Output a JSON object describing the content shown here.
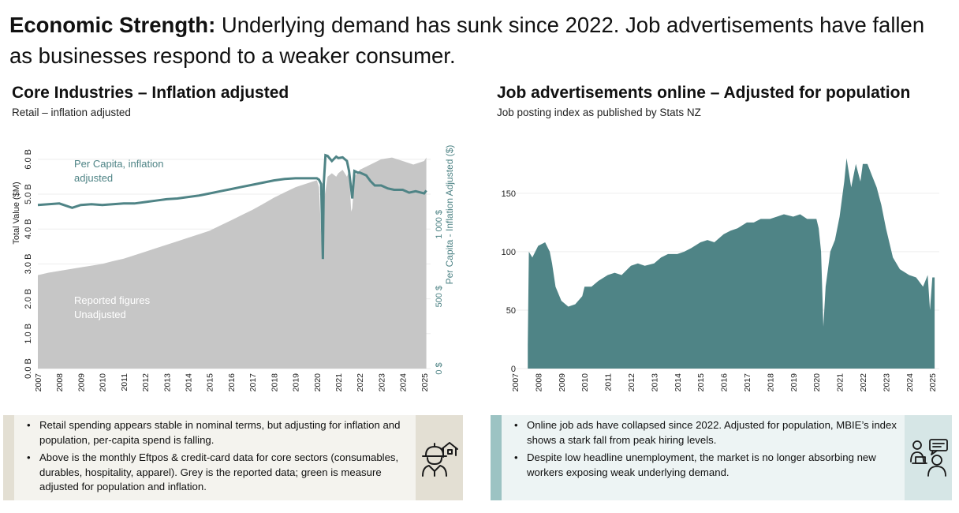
{
  "headline": {
    "lead": "Economic Strength:",
    "text": " Underlying demand has sunk since 2022. Job advertisements have fallen as businesses respond to a weaker consumer."
  },
  "left_panel": {
    "title": "Core Industries – Inflation adjusted",
    "subtitle": "Retail – inflation adjusted",
    "notes": [
      "Retail spending appears stable in nominal terms, but adjusting for inflation and population, per-capita spend is falling.",
      "Above is the monthly Eftpos & credit-card data for core sectors (consumables, durables, hospitality, apparel).  Grey is the reported data; green is measure adjusted for population and inflation."
    ],
    "icon": "construction-worker-house-icon"
  },
  "right_panel": {
    "title": "Job advertisements online – Adjusted for population",
    "subtitle": "Job posting index as published by Stats NZ",
    "notes": [
      "Online job ads have collapsed since 2022. Adjusted for population, MBIE’s index shows a stark fall from peak hiring levels.",
      "Despite low headline unemployment, the market is no longer absorbing new workers exposing weak underlying demand."
    ],
    "icon": "remote-work-people-icon"
  },
  "colors": {
    "grey_area": "#c6c6c6",
    "teal": "#4f8486",
    "note_left_bg": "#f4f3ee",
    "note_left_strip": "#e3dfd3",
    "note_right_bg": "#edf4f4",
    "note_right_strip": "#9cc3c3"
  },
  "chart_data": [
    {
      "type": "area",
      "title": "Core Industries – Inflation adjusted",
      "x_ticks": [
        "2007",
        "2008",
        "2009",
        "2010",
        "2011",
        "2012",
        "2013",
        "2014",
        "2015",
        "2016",
        "2017",
        "2018",
        "2019",
        "2020",
        "2021",
        "2022",
        "2023",
        "2024",
        "2025"
      ],
      "xlim": [
        2007.0,
        2025.3
      ],
      "ylabel": "Total Value ($M)",
      "y_ticks": [
        "0.0 B",
        "1.0 B",
        "2.0 B",
        "3.0 B",
        "4.0 B",
        "5.0 B",
        "6.0 B"
      ],
      "ylim": [
        0,
        6.2
      ],
      "y2label": "Per Capita - Inflation Adjusted ($)",
      "y2_ticks": [
        "0 $",
        "500 $",
        "1 000 $"
      ],
      "y2lim": [
        0,
        1500
      ],
      "series": [
        {
          "name": "Reported figures Unadjusted",
          "axis": "left",
          "x": [
            2007.0,
            2007.5,
            2008.0,
            2008.5,
            2009.0,
            2009.5,
            2010.0,
            2010.5,
            2011.0,
            2011.5,
            2012.0,
            2012.5,
            2013.0,
            2013.5,
            2014.0,
            2014.5,
            2015.0,
            2015.5,
            2016.0,
            2016.5,
            2017.0,
            2017.5,
            2018.0,
            2018.5,
            2019.0,
            2019.5,
            2020.0,
            2020.1,
            2020.25,
            2020.35,
            2020.5,
            2020.7,
            2020.9,
            2021.0,
            2021.2,
            2021.4,
            2021.5,
            2021.6,
            2021.65,
            2021.75,
            2022.0,
            2022.5,
            2023.0,
            2023.5,
            2024.0,
            2024.5,
            2025.0,
            2025.1
          ],
          "values": [
            2.68,
            2.75,
            2.8,
            2.85,
            2.9,
            2.95,
            3.0,
            3.08,
            3.15,
            3.25,
            3.35,
            3.45,
            3.55,
            3.65,
            3.75,
            3.85,
            3.95,
            4.1,
            4.25,
            4.4,
            4.55,
            4.72,
            4.9,
            5.05,
            5.2,
            5.3,
            5.4,
            5.2,
            3.1,
            4.9,
            5.5,
            5.6,
            5.5,
            5.6,
            5.7,
            5.5,
            5.65,
            4.5,
            4.6,
            5.5,
            5.7,
            5.85,
            6.0,
            6.05,
            5.95,
            5.85,
            5.95,
            6.05
          ]
        },
        {
          "name": "Per Capita, inflation adjusted",
          "axis": "right",
          "x": [
            2007.0,
            2007.5,
            2008.0,
            2008.3,
            2008.6,
            2009.0,
            2009.5,
            2010.0,
            2010.5,
            2011.0,
            2011.5,
            2012.0,
            2012.5,
            2013.0,
            2013.5,
            2014.0,
            2014.5,
            2015.0,
            2015.5,
            2016.0,
            2016.5,
            2017.0,
            2017.5,
            2018.0,
            2018.5,
            2019.0,
            2019.5,
            2020.0,
            2020.1,
            2020.2,
            2020.28,
            2020.32,
            2020.4,
            2020.5,
            2020.7,
            2020.9,
            2021.0,
            2021.2,
            2021.4,
            2021.5,
            2021.65,
            2021.75,
            2021.9,
            2022.0,
            2022.3,
            2022.5,
            2022.7,
            2023.0,
            2023.3,
            2023.6,
            2024.0,
            2024.3,
            2024.6,
            2025.0,
            2025.1
          ],
          "values": [
            1135,
            1140,
            1145,
            1130,
            1115,
            1135,
            1140,
            1135,
            1140,
            1145,
            1145,
            1155,
            1165,
            1175,
            1180,
            1190,
            1200,
            1215,
            1230,
            1245,
            1260,
            1275,
            1290,
            1305,
            1315,
            1320,
            1320,
            1320,
            1310,
            1280,
            760,
            1280,
            1480,
            1475,
            1440,
            1470,
            1460,
            1465,
            1440,
            1370,
            1180,
            1370,
            1360,
            1360,
            1340,
            1300,
            1270,
            1270,
            1250,
            1240,
            1240,
            1220,
            1230,
            1215,
            1235
          ]
        }
      ],
      "annotations": [
        "Per Capita, inflation adjusted",
        "Reported figures Unadjusted"
      ]
    },
    {
      "type": "area",
      "title": "Job advertisements online – Adjusted for population",
      "x_ticks": [
        "2007",
        "2008",
        "2009",
        "2010",
        "2011",
        "2012",
        "2013",
        "2014",
        "2015",
        "2016",
        "2017",
        "2018",
        "2019",
        "2020",
        "2021",
        "2022",
        "2023",
        "2024",
        "2025"
      ],
      "xlim": [
        2007.0,
        2025.3
      ],
      "y_ticks": [
        "0",
        "50",
        "100",
        "150"
      ],
      "ylim": [
        0,
        185
      ],
      "series": [
        {
          "name": "Job posting index",
          "x": [
            2007.55,
            2007.6,
            2007.75,
            2008.0,
            2008.3,
            2008.5,
            2008.6,
            2008.75,
            2009.0,
            2009.3,
            2009.6,
            2009.9,
            2010.0,
            2010.3,
            2010.6,
            2011.0,
            2011.3,
            2011.6,
            2012.0,
            2012.3,
            2012.6,
            2013.0,
            2013.3,
            2013.6,
            2014.0,
            2014.3,
            2014.6,
            2015.0,
            2015.3,
            2015.6,
            2016.0,
            2016.3,
            2016.6,
            2017.0,
            2017.3,
            2017.6,
            2018.0,
            2018.3,
            2018.6,
            2019.0,
            2019.3,
            2019.6,
            2020.0,
            2020.1,
            2020.2,
            2020.3,
            2020.4,
            2020.6,
            2020.8,
            2021.0,
            2021.2,
            2021.3,
            2021.5,
            2021.7,
            2021.9,
            2022.0,
            2022.2,
            2022.4,
            2022.6,
            2022.8,
            2023.0,
            2023.3,
            2023.6,
            2024.0,
            2024.3,
            2024.6,
            2024.8,
            2024.9,
            2025.0,
            2025.1
          ],
          "values": [
            20,
            100,
            95,
            105,
            108,
            100,
            90,
            70,
            58,
            53,
            55,
            62,
            70,
            70,
            75,
            80,
            82,
            80,
            88,
            90,
            88,
            90,
            95,
            98,
            98,
            100,
            103,
            108,
            110,
            108,
            115,
            118,
            120,
            125,
            125,
            128,
            128,
            130,
            132,
            130,
            132,
            128,
            128,
            120,
            100,
            36,
            70,
            100,
            110,
            130,
            160,
            180,
            155,
            175,
            160,
            175,
            175,
            165,
            155,
            140,
            120,
            95,
            85,
            80,
            78,
            70,
            80,
            50,
            78,
            78
          ]
        }
      ]
    }
  ]
}
